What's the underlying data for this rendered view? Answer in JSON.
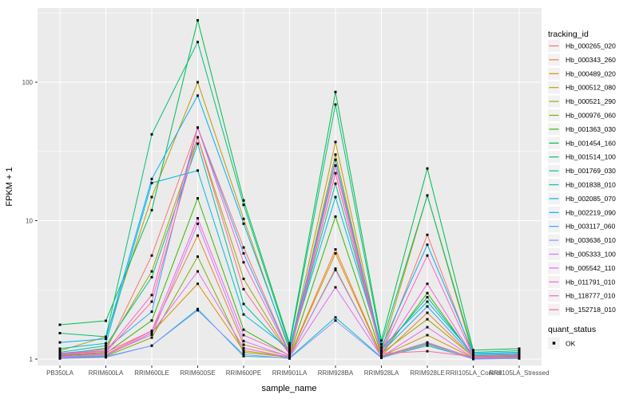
{
  "chart_data": {
    "type": "line",
    "title": "",
    "xlabel": "sample_name",
    "ylabel": "FPKM + 1",
    "y_scale": "log10",
    "y_ticks": [
      1,
      10,
      100
    ],
    "y_minor_ticks": [
      3.162,
      31.62,
      316.2
    ],
    "ylim": [
      0.93,
      345
    ],
    "grid": true,
    "legend_position": "right",
    "legend_title": "tracking_id",
    "marker": "small-black-square",
    "panel_bg": "#EBEBEB",
    "grid_color": "#FFFFFF",
    "tick_label_color": "#4D4D4D",
    "axis_title_color": "#000000",
    "legend_key_bg": "#F2F2F2",
    "point_color": "#0A0A0A",
    "categories": [
      "PB350LA",
      "RRIM600LA",
      "RRIM600LE",
      "RRIM600SE",
      "RRIM600PE",
      "RRIM901LA",
      "RRIM928BA",
      "RRIM928LA",
      "RRIM928LE",
      "RRII105LA_Control",
      "RRII105LA_Stressed"
    ],
    "series": [
      {
        "name": "Hb_000265_020",
        "color": "#F8766D",
        "values": [
          1.1,
          1.15,
          5.6,
          47,
          6.4,
          1.1,
          25,
          1.12,
          7.9,
          1.05,
          1.08
        ]
      },
      {
        "name": "Hb_000343_260",
        "color": "#EA8331",
        "values": [
          1.05,
          1.08,
          1.6,
          7.8,
          1.27,
          1.05,
          6.2,
          1.06,
          2.16,
          1.03,
          1.05
        ]
      },
      {
        "name": "Hb_000489_020",
        "color": "#D89000",
        "values": [
          1.04,
          1.06,
          1.55,
          3.5,
          1.15,
          1.04,
          5.8,
          1.05,
          1.49,
          1.02,
          1.04
        ]
      },
      {
        "name": "Hb_000512_080",
        "color": "#C09B00",
        "values": [
          1.15,
          1.45,
          14.8,
          100,
          10.3,
          1.15,
          37,
          1.14,
          15.2,
          1.06,
          1.08
        ]
      },
      {
        "name": "Hb_000521_290",
        "color": "#A3A500",
        "values": [
          1.08,
          1.2,
          4.3,
          40,
          3.8,
          1.08,
          30,
          1.1,
          1.94,
          1.04,
          1.06
        ]
      },
      {
        "name": "Hb_000976_060",
        "color": "#7CAE00",
        "values": [
          1.03,
          1.05,
          1.43,
          5.5,
          1.12,
          1.03,
          4.5,
          1.04,
          1.3,
          1.02,
          1.03
        ]
      },
      {
        "name": "Hb_001363_030",
        "color": "#39B600",
        "values": [
          1.06,
          1.1,
          1.9,
          14.5,
          1.63,
          1.06,
          10.7,
          1.08,
          3.0,
          1.04,
          1.05
        ]
      },
      {
        "name": "Hb_001454_160",
        "color": "#00BB4E",
        "values": [
          1.77,
          1.89,
          11.9,
          280,
          14.0,
          1.3,
          85,
          1.36,
          23.8,
          1.16,
          1.19
        ]
      },
      {
        "name": "Hb_001514_100",
        "color": "#00C078",
        "values": [
          1.54,
          1.45,
          42,
          195,
          13.0,
          1.25,
          69,
          1.28,
          15.2,
          1.12,
          1.15
        ]
      },
      {
        "name": "Hb_001769_030",
        "color": "#00C19C",
        "values": [
          1.12,
          1.25,
          3.9,
          36,
          2.5,
          1.12,
          18.5,
          1.15,
          2.8,
          1.06,
          1.08
        ]
      },
      {
        "name": "Hb_001838_010",
        "color": "#00BFC4",
        "values": [
          1.02,
          1.04,
          1.25,
          2.3,
          1.05,
          1.02,
          2.0,
          1.03,
          1.25,
          1.01,
          1.02
        ]
      },
      {
        "name": "Hb_002085_070",
        "color": "#00BAE0",
        "values": [
          1.19,
          1.3,
          18.7,
          23,
          2.1,
          1.18,
          14.8,
          1.2,
          2.6,
          1.08,
          1.1
        ]
      },
      {
        "name": "Hb_002219_090",
        "color": "#00B0F6",
        "values": [
          1.32,
          1.4,
          20,
          80,
          9.5,
          1.2,
          25,
          1.22,
          6.7,
          1.1,
          1.12
        ]
      },
      {
        "name": "Hb_003117_060",
        "color": "#35A2FF",
        "values": [
          1.1,
          1.18,
          2.2,
          47,
          5.8,
          1.1,
          27.5,
          1.12,
          2.4,
          1.05,
          1.07
        ]
      },
      {
        "name": "Hb_003636_010",
        "color": "#9590FF",
        "values": [
          1.01,
          1.03,
          1.25,
          2.25,
          1.08,
          1.01,
          1.9,
          1.02,
          1.28,
          1.0,
          1.01
        ]
      },
      {
        "name": "Hb_005333_100",
        "color": "#C77CFF",
        "values": [
          1.04,
          1.08,
          1.5,
          9.5,
          1.35,
          1.04,
          4.4,
          1.05,
          1.32,
          1.02,
          1.03
        ]
      },
      {
        "name": "Hb_005542_110",
        "color": "#E76BF3",
        "values": [
          1.03,
          1.06,
          1.55,
          4.3,
          1.2,
          1.03,
          3.3,
          1.04,
          1.7,
          1.02,
          1.03
        ]
      },
      {
        "name": "Hb_011791_010",
        "color": "#FA62DB",
        "values": [
          1.07,
          1.12,
          1.6,
          10.4,
          1.49,
          1.07,
          22,
          1.09,
          3.5,
          1.04,
          1.06
        ]
      },
      {
        "name": "Hb_118777_010",
        "color": "#FF61C9",
        "values": [
          1.09,
          1.14,
          2.9,
          47,
          5.0,
          1.09,
          25,
          1.11,
          5.6,
          1.05,
          1.07
        ]
      },
      {
        "name": "Hb_152718_010",
        "color": "#FF6A98",
        "values": [
          1.08,
          1.12,
          2.6,
          40,
          3.2,
          1.08,
          22,
          1.1,
          1.14,
          1.04,
          1.06
        ]
      }
    ],
    "quant_legend": {
      "title": "quant_status",
      "items": [
        {
          "label": "OK",
          "marker": "black-square"
        }
      ]
    }
  }
}
